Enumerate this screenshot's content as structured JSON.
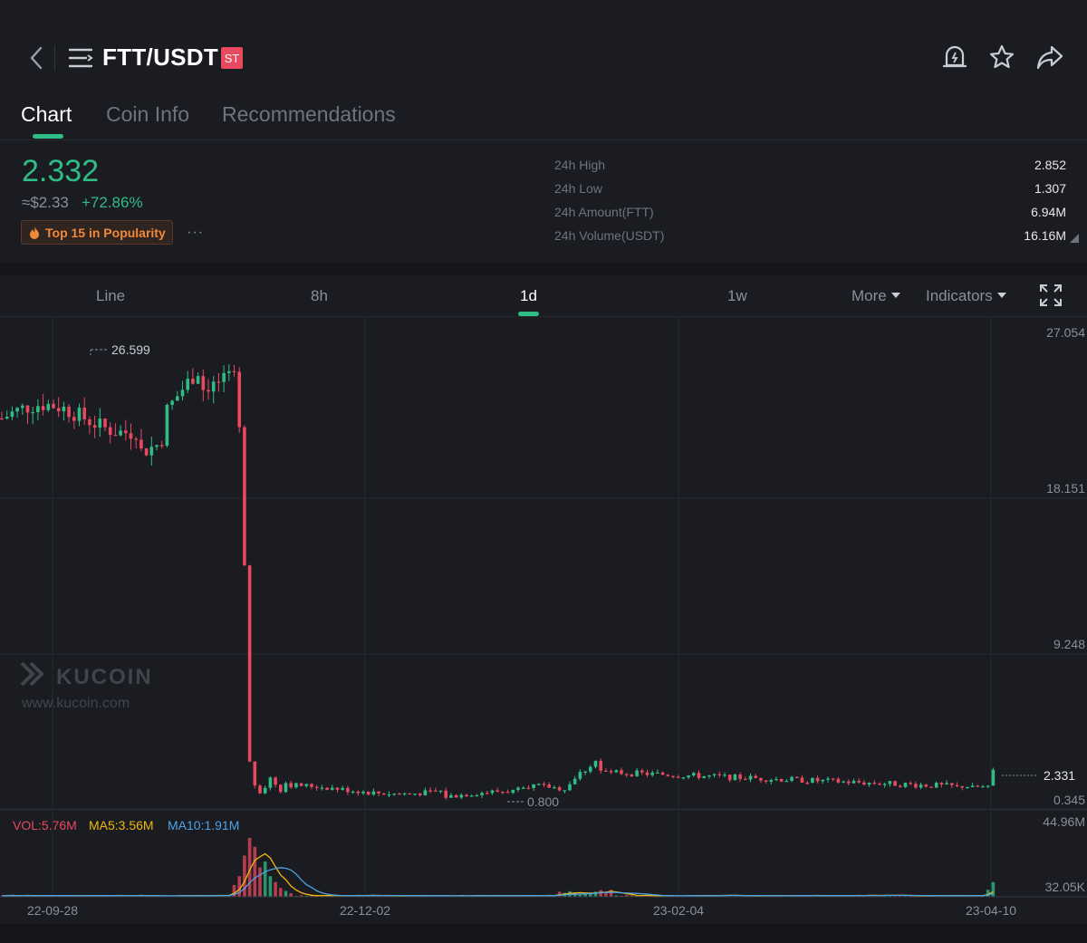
{
  "header": {
    "title": "FTT/USDT",
    "badge": "ST",
    "icons": [
      "back-icon",
      "menu-icon",
      "price-alert-icon",
      "star-icon",
      "share-icon"
    ]
  },
  "tabs": [
    {
      "label": "Chart",
      "active": true
    },
    {
      "label": "Coin Info",
      "active": false
    },
    {
      "label": "Recommendations",
      "active": false
    }
  ],
  "ticker": {
    "price": "2.332",
    "fiat": "≈$2.33",
    "change": "+72.86%",
    "popularity": "Top 15 in Popularity",
    "more": "···",
    "stats": [
      {
        "label": "24h High",
        "value": "2.852"
      },
      {
        "label": "24h Low",
        "value": "1.307"
      },
      {
        "label": "24h Amount(FTT)",
        "value": "6.94M"
      },
      {
        "label": "24h Volume(USDT)",
        "value": "16.16M"
      }
    ]
  },
  "chart_toolbar": {
    "items": [
      "Line",
      "8h",
      "1d",
      "1w"
    ],
    "active": "1d",
    "more": "More",
    "indicators": "Indicators"
  },
  "colors": {
    "up": "#2fbd85",
    "down": "#e8495f",
    "ma5": "#f0b90b",
    "ma10": "#4ea3e4",
    "background": "#1a1c22"
  },
  "chart_data": {
    "type": "candlestick",
    "interval": "1d",
    "price_axis_ticks": [
      "27.054",
      "18.151",
      "9.248",
      "0.345"
    ],
    "ylim": [
      0.345,
      27.054
    ],
    "x_tick_labels": [
      "22-09-28",
      "22-12-02",
      "23-02-04",
      "23-04-10"
    ],
    "high_marker": "26.599",
    "low_marker": "0.800",
    "last_price": "2.331",
    "watermark": {
      "brand": "KUCOIN",
      "url": "www.kucoin.com"
    },
    "volume": {
      "legend": {
        "vol": "VOL:5.76M",
        "ma5": "MA5:3.56M",
        "ma10": "MA10:1.91M"
      },
      "axis_ticks": [
        "44.96M",
        "32.05K"
      ]
    },
    "segments": [
      {
        "phase": "pre-crash",
        "range": [
          21.5,
          26.6
        ],
        "note_values": [
          22.4,
          23.0,
          22.7,
          24.5,
          22.0,
          23.5,
          26.0,
          25.2,
          24.0,
          22.5
        ]
      },
      {
        "phase": "crash",
        "from": 21.9,
        "to": 1.5
      },
      {
        "phase": "post-crash",
        "range": [
          0.8,
          3.2
        ]
      },
      {
        "phase": "latest",
        "close": 2.331
      }
    ]
  }
}
